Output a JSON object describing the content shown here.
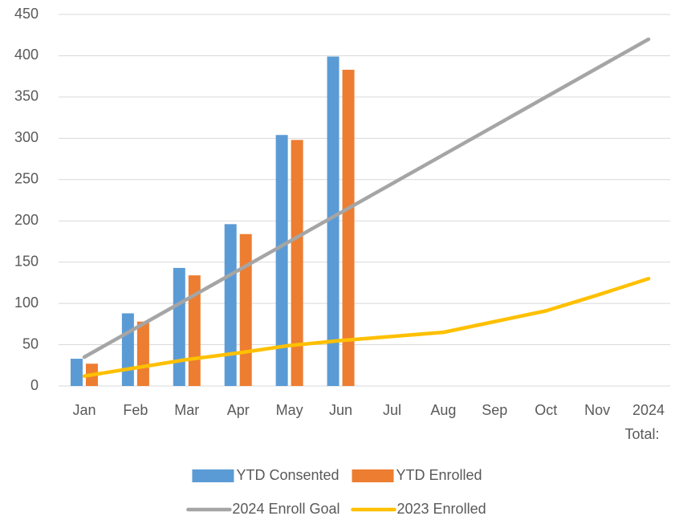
{
  "chart_data": {
    "type": "bar",
    "categories": [
      "Jan",
      "Feb",
      "Mar",
      "Apr",
      "May",
      "Jun",
      "Jul",
      "Aug",
      "Sep",
      "Oct",
      "Nov",
      "2024\nTotal:"
    ],
    "series": [
      {
        "name": "YTD Consented",
        "type": "bar",
        "color": "#5b9bd5",
        "values": [
          33,
          88,
          143,
          196,
          304,
          399,
          null,
          null,
          null,
          null,
          null,
          null
        ]
      },
      {
        "name": "YTD Enrolled",
        "type": "bar",
        "color": "#ed7d31",
        "values": [
          27,
          78,
          134,
          184,
          298,
          383,
          null,
          null,
          null,
          null,
          null,
          null
        ]
      },
      {
        "name": "2024 Enroll Goal",
        "type": "line",
        "color": "#a5a5a5",
        "values": [
          35,
          70,
          105,
          140,
          175,
          210,
          245,
          280,
          315,
          350,
          385,
          420
        ]
      },
      {
        "name": "2023 Enrolled",
        "type": "line",
        "color": "#ffc000",
        "values": [
          12,
          22,
          32,
          40,
          49,
          55,
          60,
          65,
          78,
          91,
          110,
          130
        ]
      }
    ],
    "ylim": [
      0,
      450
    ],
    "yticks": [
      0,
      50,
      100,
      150,
      200,
      250,
      300,
      350,
      400,
      450
    ],
    "grid": true,
    "legend": "bottom"
  }
}
